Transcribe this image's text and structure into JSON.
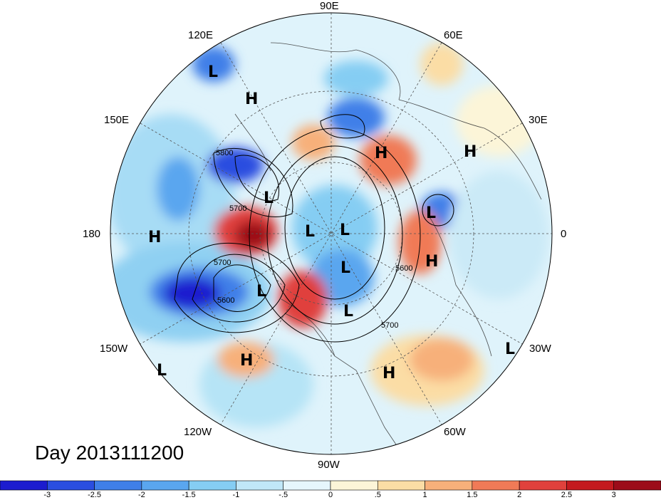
{
  "title": "Day 2013111200",
  "longitude_labels": [
    "90E",
    "60E",
    "30E",
    "0",
    "30W",
    "60W",
    "90W",
    "120W",
    "150W",
    "180",
    "150E",
    "120E"
  ],
  "contour_labels": [
    "5800",
    "5700",
    "5700",
    "5600",
    "5600",
    "5700"
  ],
  "pressure_centers": [
    {
      "type": "L"
    },
    {
      "type": "H"
    },
    {
      "type": "H"
    },
    {
      "type": "H"
    },
    {
      "type": "L"
    },
    {
      "type": "L"
    },
    {
      "type": "H"
    },
    {
      "type": "L"
    },
    {
      "type": "L"
    },
    {
      "type": "L"
    },
    {
      "type": "H"
    },
    {
      "type": "L"
    },
    {
      "type": "L"
    },
    {
      "type": "H"
    },
    {
      "type": "L"
    },
    {
      "type": "H"
    },
    {
      "type": "L"
    }
  ],
  "colorbar": {
    "ticks": [
      "-3",
      "-2.5",
      "-2",
      "-1.5",
      "-1",
      "-.5",
      "0",
      ".5",
      "1",
      "1.5",
      "2",
      "2.5",
      "3"
    ],
    "colors": [
      "#1c1ccf",
      "#2a4ee0",
      "#3f7fe8",
      "#5aa6ef",
      "#85cdf3",
      "#c0e7f8",
      "#e6f6fc",
      "#fcf5d8",
      "#fbdda5",
      "#f7b07a",
      "#f07a57",
      "#e0413c",
      "#c41a1f",
      "#9c0c19"
    ]
  }
}
